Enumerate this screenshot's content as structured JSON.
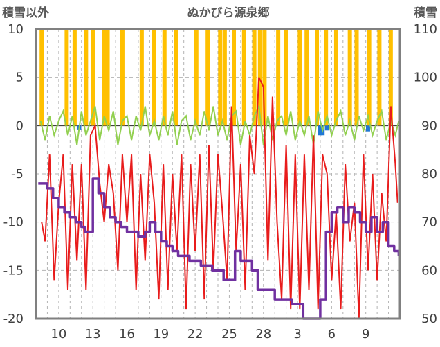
{
  "chart_data": {
    "type": "line",
    "title": "ぬかびら源泉郷",
    "left_axis_label": "積雪以外",
    "right_axis_label": "積雪",
    "y_left": {
      "min": -20,
      "max": 10,
      "ticks": [
        10,
        5,
        0,
        -5,
        -10,
        -15,
        -20
      ]
    },
    "y_right": {
      "min": 50,
      "max": 110,
      "ticks": [
        110,
        100,
        90,
        80,
        70,
        60,
        50
      ]
    },
    "x_ticks": [
      "10",
      "13",
      "16",
      "19",
      "22",
      "25",
      "28",
      "3",
      "6",
      "9"
    ],
    "x_domain": [
      0,
      32
    ],
    "x_tick_positions": [
      2,
      5,
      8,
      11,
      14,
      17,
      20,
      23,
      26,
      29
    ],
    "grid": true,
    "colors": {
      "temperature": "#e81c1c",
      "temp_change": "#92d050",
      "sunshine": "#ffc000",
      "precipitation": "#1f77d4",
      "snow_depth": "#7030a0",
      "grid": "#b3b3b3",
      "frame": "#808080"
    },
    "series": [
      {
        "axis": "left",
        "style": "line",
        "x": [
          0.5,
          0.8,
          1.2,
          1.6,
          2.0,
          2.4,
          2.8,
          3.2,
          3.6,
          4.0,
          4.4,
          4.8,
          5.2,
          5.6,
          6.0,
          6.4,
          6.8,
          7.2,
          7.6,
          8.0,
          8.4,
          8.8,
          9.2,
          9.6,
          10.0,
          10.4,
          10.8,
          11.2,
          11.6,
          12.0,
          12.4,
          12.8,
          13.2,
          13.6,
          14.0,
          14.4,
          14.8,
          15.2,
          15.6,
          16.0,
          16.4,
          16.8,
          17.2,
          17.6,
          18.0,
          18.4,
          18.8,
          19.2,
          19.6,
          20.0,
          20.4,
          20.8,
          21.2,
          21.6,
          22.0,
          22.4,
          22.8,
          23.2,
          23.6,
          24.0,
          24.4,
          24.8,
          25.2,
          25.6,
          26.0,
          26.4,
          26.8,
          27.2,
          27.6,
          28.0,
          28.4,
          28.8,
          29.2,
          29.6,
          30.0,
          30.4,
          30.8,
          31.2,
          31.6,
          31.8
        ],
        "y": [
          -10,
          -12,
          -3,
          -16,
          -8,
          -3,
          -17,
          -4,
          -14,
          -4,
          -17,
          -1,
          0,
          -6,
          -10,
          -4,
          -7,
          -15,
          -3,
          -10,
          -3,
          -17,
          -5,
          -14,
          -3,
          -8,
          -18,
          -4,
          -17,
          -5,
          -13,
          -3,
          -19,
          -4,
          -13,
          -3,
          -18,
          -2,
          -15,
          -3,
          -9,
          -16,
          2,
          -13,
          -4,
          -17,
          -1,
          -5,
          5,
          4,
          -14,
          3,
          -10,
          -18,
          -2,
          -19,
          -3,
          -19,
          -3,
          -17,
          -1,
          -19,
          -3,
          -5,
          -16,
          -9,
          -19,
          -4,
          -12,
          -8,
          -20,
          -3,
          -15,
          -5,
          -16,
          -7,
          -12,
          2,
          -4,
          -8
        ]
      },
      {
        "axis": "left",
        "style": "line",
        "x": [
          0.4,
          0.8,
          1.2,
          1.6,
          2.0,
          2.4,
          2.8,
          3.2,
          3.6,
          4.0,
          4.4,
          4.8,
          5.2,
          5.6,
          6.0,
          6.4,
          6.8,
          7.2,
          7.6,
          8.0,
          8.4,
          8.8,
          9.2,
          9.6,
          10.0,
          10.4,
          10.8,
          11.2,
          11.6,
          12.0,
          12.4,
          12.8,
          13.2,
          13.6,
          14.0,
          14.4,
          14.8,
          15.2,
          15.6,
          16.0,
          16.4,
          16.8,
          17.2,
          17.6,
          18.0,
          18.4,
          18.8,
          19.2,
          19.6,
          20.0,
          20.4,
          20.8,
          21.2,
          21.6,
          22.0,
          22.4,
          22.8,
          23.2,
          23.6,
          24.0,
          24.4,
          24.8,
          25.2,
          25.6,
          26.0,
          26.4,
          26.8,
          27.2,
          27.6,
          28.0,
          28.4,
          28.8,
          29.2,
          29.6,
          30.0,
          30.4,
          30.8,
          31.2,
          31.6,
          31.9
        ],
        "y": [
          0.5,
          -1.5,
          1,
          -1,
          0.5,
          1.5,
          -1,
          1,
          -2,
          1.5,
          -1,
          0.5,
          2,
          -1.5,
          1,
          -0.5,
          1.5,
          -2,
          0.5,
          1,
          -1.5,
          1,
          -0.5,
          2,
          -1,
          0.5,
          -1.5,
          1,
          -1,
          1.5,
          -2,
          0.5,
          1,
          -1.5,
          0.5,
          -1,
          1.5,
          -0.5,
          2,
          -1,
          0.5,
          -1.5,
          1,
          1.5,
          -2,
          0.5,
          -1,
          1,
          2,
          -2,
          1,
          -1.5,
          0.5,
          1,
          -1,
          1.5,
          -1.5,
          0.5,
          -1,
          1,
          -2,
          1.5,
          -0.5,
          1,
          -1,
          0.5,
          1.5,
          -1,
          0.5,
          -1.5,
          1,
          -0.5,
          1,
          -1,
          0.5,
          1.5,
          -1.5,
          0.5,
          -1,
          0.5
        ]
      },
      {
        "axis": "left",
        "style": "bars",
        "x": [
          0.5,
          2.7,
          3.4,
          4.4,
          5.0,
          6.0,
          6.3,
          7.6,
          9.3,
          10.4,
          11.3,
          12.3,
          14.1,
          15.1,
          16.2,
          16.6,
          17.4,
          18.3,
          19.2,
          19.7,
          20.1,
          21.3,
          22.0,
          23.2,
          23.8,
          24.7,
          25.5,
          26.4,
          27.6,
          28.2,
          29.3,
          30.2,
          31.2
        ],
        "y": [
          10,
          10,
          10,
          10,
          10,
          10,
          10,
          10,
          10,
          10,
          10,
          10,
          10,
          10,
          10,
          10,
          10,
          10,
          10,
          10,
          10,
          10,
          10,
          10,
          10,
          10,
          10,
          10,
          10,
          10,
          10,
          10,
          10
        ]
      },
      {
        "axis": "left",
        "style": "bars",
        "x": [
          3.8,
          25.0,
          25.2,
          25.6,
          29.2
        ],
        "y": [
          -0.4,
          -1.0,
          -1.0,
          -0.5,
          -0.6
        ]
      },
      {
        "axis": "right",
        "style": "step",
        "x": [
          0.2,
          1.0,
          1.5,
          2.0,
          2.5,
          3.0,
          3.5,
          4.0,
          4.3,
          4.5,
          5.0,
          5.5,
          6.0,
          6.5,
          7.0,
          7.5,
          8.0,
          8.5,
          9.0,
          9.3,
          9.6,
          10.0,
          10.5,
          11.0,
          11.5,
          12.0,
          12.5,
          13.0,
          13.5,
          14.0,
          14.5,
          15.0,
          15.5,
          16.0,
          16.5,
          17.0,
          17.5,
          18.0,
          18.5,
          19.0,
          19.5,
          20.0,
          20.5,
          21.0,
          21.5,
          22.0,
          22.5,
          23.0,
          23.5,
          24.0,
          24.5,
          24.8,
          25.0,
          25.5,
          26.0,
          26.5,
          27.0,
          27.5,
          28.0,
          28.5,
          29.0,
          29.5,
          30.0,
          30.5,
          31.0,
          31.5,
          31.9
        ],
        "y": [
          78,
          77,
          75,
          73,
          72,
          71,
          70,
          69,
          68,
          68,
          79,
          76,
          73,
          71,
          70,
          69,
          68,
          68,
          67,
          67,
          68,
          70,
          68,
          66,
          65,
          64,
          63,
          63,
          62,
          62,
          61,
          61,
          60,
          60,
          58,
          58,
          64,
          62,
          62,
          60,
          56,
          56,
          56,
          54,
          54,
          54,
          53,
          53,
          50,
          50,
          50,
          50,
          54,
          68,
          72,
          73,
          70,
          73,
          72,
          70,
          68,
          71,
          68,
          70,
          65,
          64,
          63
        ]
      }
    ]
  }
}
